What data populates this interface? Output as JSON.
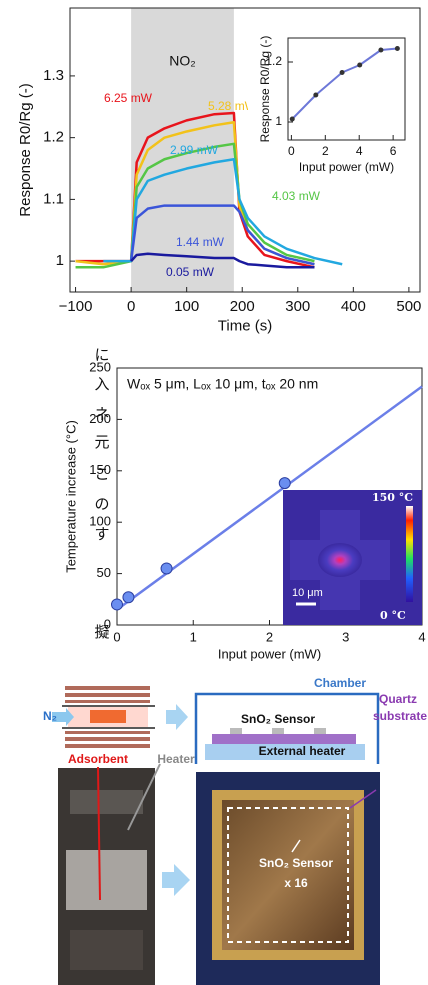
{
  "chart_data": [
    {
      "type": "line",
      "xlabel": "Time (s)",
      "ylabel": "Response R0/Rg (-)",
      "annotation": "NO₂",
      "shaded_x": [
        0,
        185
      ],
      "x": [
        -100,
        -50,
        0,
        10,
        30,
        60,
        100,
        150,
        185,
        195,
        210,
        240,
        280,
        330,
        380
      ],
      "series": [
        {
          "name": "6.25 mW",
          "color": "#e8141c",
          "values": [
            1.0,
            1.0,
            1.0,
            1.16,
            1.2,
            1.215,
            1.228,
            1.238,
            1.24,
            1.08,
            1.04,
            1.01,
            1.0,
            0.99,
            null
          ]
        },
        {
          "name": "5.28 mW",
          "color": "#f2c21a",
          "values": [
            1.0,
            0.995,
            1.0,
            1.14,
            1.18,
            1.2,
            1.21,
            1.22,
            1.225,
            1.09,
            1.05,
            1.02,
            1.005,
            0.995,
            null
          ]
        },
        {
          "name": "4.03 mW",
          "color": "#55c646",
          "values": [
            0.99,
            0.99,
            1.0,
            1.12,
            1.15,
            1.165,
            1.175,
            1.185,
            1.19,
            1.1,
            1.06,
            1.03,
            1.01,
            1.0,
            null
          ]
        },
        {
          "name": "2.99 mW",
          "color": "#22a8e0",
          "values": [
            null,
            1.0,
            1.0,
            1.1,
            1.13,
            1.14,
            1.15,
            1.16,
            1.165,
            1.1,
            1.07,
            1.04,
            1.02,
            1.005,
            0.995
          ]
        },
        {
          "name": "1.44 mW",
          "color": "#3b55d9",
          "values": [
            null,
            null,
            1.0,
            1.07,
            1.085,
            1.09,
            1.09,
            1.09,
            1.09,
            1.08,
            1.05,
            1.02,
            1.005,
            0.995,
            null
          ]
        },
        {
          "name": "0.05 mW",
          "color": "#1a1a9e",
          "values": [
            null,
            null,
            1.0,
            1.01,
            1.012,
            1.01,
            1.008,
            1.005,
            1.005,
            1.0,
            0.995,
            0.993,
            0.99,
            0.99,
            null
          ]
        }
      ],
      "xlim": [
        -110,
        520
      ],
      "ylim": [
        0.95,
        1.41
      ],
      "xticks": [
        {
          "value": -100,
          "label": "−100"
        },
        0,
        100,
        200,
        300,
        400,
        500
      ],
      "yticks": [
        1,
        1.1,
        1.2,
        1.3
      ]
    },
    {
      "type": "line",
      "markers": true,
      "xlabel": "Input power (mW)",
      "ylabel": "Response R0/Rg (-)",
      "x": [
        0.05,
        1.44,
        2.99,
        4.03,
        5.28,
        6.25
      ],
      "series": [
        {
          "color": "#6d78d8",
          "values": [
            1.01,
            1.09,
            1.165,
            1.19,
            1.24,
            1.245
          ]
        }
      ],
      "xlim": [
        -0.2,
        6.7
      ],
      "ylim": [
        0.94,
        1.28
      ],
      "xticks": [
        0,
        2,
        4,
        6
      ],
      "yticks": [
        1,
        1.2
      ]
    },
    {
      "type": "scatter",
      "xlabel": "Input power (mW)",
      "ylabel": "Temperature increase (°C)",
      "annotation": "Wₒₓ 5 μm, Lₒₓ 10 μm, tₒₓ 20 nm",
      "x": [
        0,
        0.15,
        0.65,
        2.2
      ],
      "values": [
        20,
        27,
        55,
        138
      ],
      "color": "#6a8ef0",
      "fit": {
        "x": [
          0,
          4
        ],
        "values": [
          15,
          232
        ],
        "color": "#6b7fe8"
      },
      "inset_labels": [
        "150 °C",
        "0 °C",
        "10 μm"
      ],
      "xlim": [
        0,
        4
      ],
      "ylim": [
        0,
        250
      ],
      "xticks": [
        0,
        1,
        2,
        3,
        4
      ],
      "yticks": [
        0,
        50,
        100,
        150,
        200,
        250
      ]
    }
  ],
  "side_text": [
    "に",
    "入",
    "ネ",
    "元",
    "こ",
    "の",
    "す",
    "擬"
  ],
  "diagram": {
    "n2": "N₂",
    "adsorbent": "Adsorbent",
    "heater": "Heater",
    "chamber": "Chamber",
    "sensor": "SnO₂ Sensor",
    "external_heater": "External heater",
    "quartz": [
      "Quartz",
      "substrate"
    ],
    "chip_sensor": "SnO₂ Sensor",
    "chip_count": "x 16"
  }
}
